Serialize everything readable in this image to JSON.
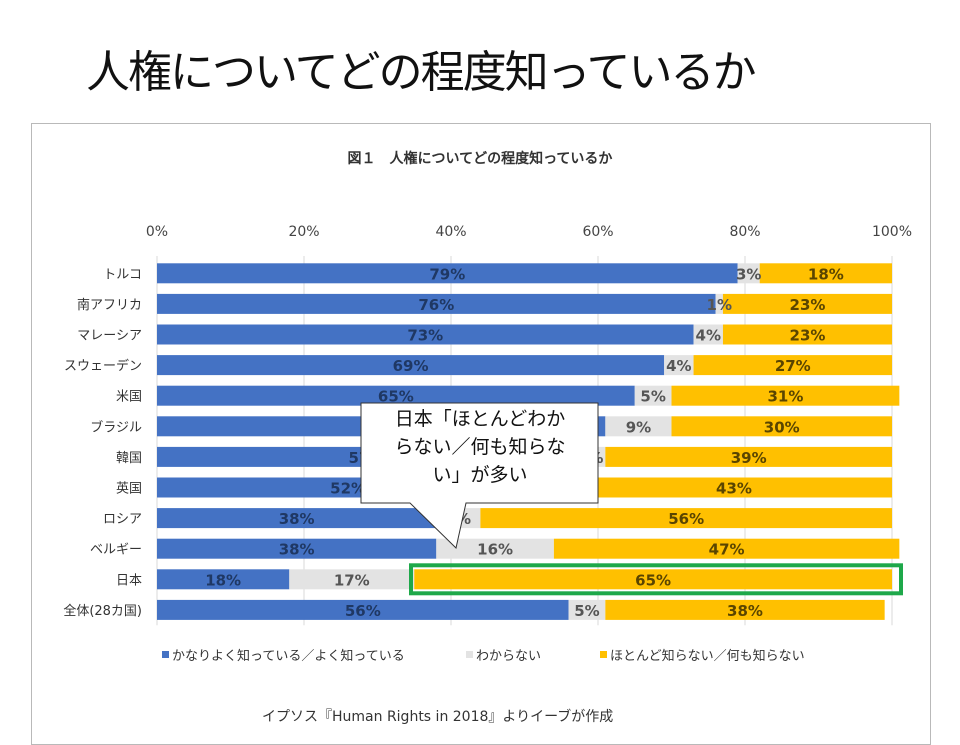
{
  "slide": {
    "title": "人権についてどの程度知っているか"
  },
  "callout": {
    "text": "日本「ほとんどわからない／何も知らない」が多い",
    "lines": [
      "日本「ほとんどわか",
      "らない／何も知らな",
      "い」が多い"
    ],
    "points_to": "日本",
    "highlight_color": "#1ea84a"
  },
  "source_note": "イプソス『Human Rights in 2018』よりイーブが作成",
  "chart_data": {
    "type": "bar",
    "orientation": "horizontal",
    "stacked": "percent",
    "title": "図１　人権についてどの程度知っているか",
    "xlabel": "",
    "ylabel": "",
    "xlim": [
      0,
      100
    ],
    "x_ticks": [
      "0%",
      "20%",
      "40%",
      "60%",
      "80%",
      "100%"
    ],
    "x_tick_values": [
      0,
      20,
      40,
      60,
      80,
      100
    ],
    "x_axis_position": "top",
    "grid": true,
    "legend_position": "bottom",
    "categories": [
      "トルコ",
      "南アフリカ",
      "マレーシア",
      "スウェーデン",
      "米国",
      "ブラジル",
      "韓国",
      "英国",
      "ロシア",
      "ベルギー",
      "日本",
      "全体(28カ国)"
    ],
    "series": [
      {
        "name": "かなりよく知っている／よく知っている",
        "color": "#4472c4",
        "label_color": "#1f3864",
        "values": [
          79,
          76,
          73,
          69,
          65,
          61,
          57,
          52,
          38,
          38,
          18,
          56
        ]
      },
      {
        "name": "わからない",
        "color": "#e3e3e3",
        "label_color": "#555555",
        "values": [
          3,
          1,
          4,
          4,
          5,
          9,
          4,
          5,
          6,
          16,
          17,
          5
        ]
      },
      {
        "name": "ほとんど知らない／何も知らない",
        "color": "#ffc000",
        "label_color": "#5a4500",
        "values": [
          18,
          23,
          23,
          27,
          31,
          30,
          39,
          43,
          56,
          47,
          65,
          38
        ]
      }
    ],
    "highlighted_category": "日本",
    "highlighted_series": "ほとんど知らない／何も知らない"
  }
}
